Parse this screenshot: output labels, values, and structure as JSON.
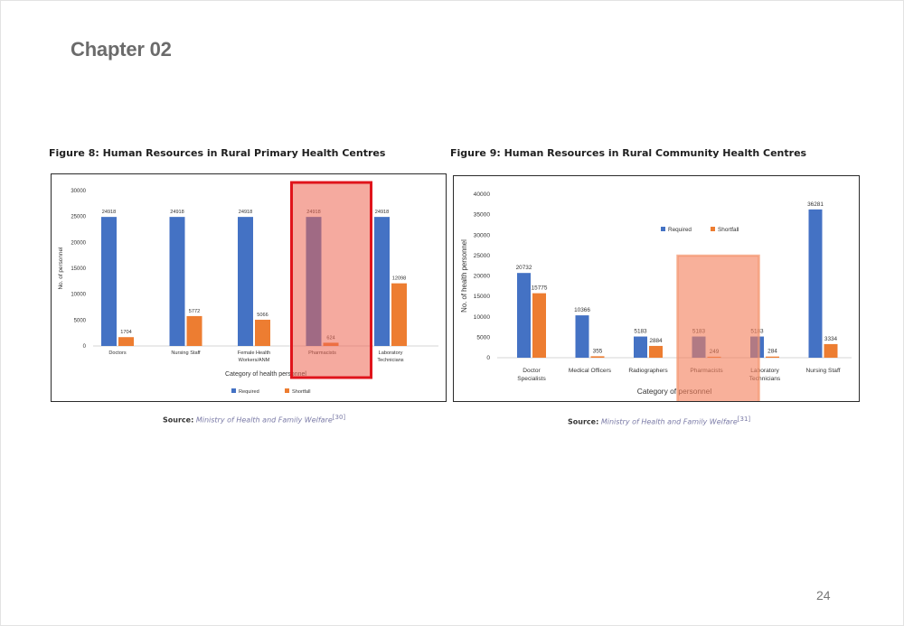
{
  "chapter": "Chapter 02",
  "page_number": "24",
  "colors": {
    "required": "#4472c4",
    "shortfall": "#ed7d31"
  },
  "figures": [
    {
      "title": "Figure 8: Human Resources in Rural Primary Health Centres",
      "source_label": "Source:",
      "source_text": "Ministry of Health and Family Welfare",
      "source_ref": "[30]"
    },
    {
      "title": "Figure 9: Human Resources in Rural Community Health Centres",
      "source_label": "Source:",
      "source_text": "Ministry of Health and Family Welfare",
      "source_ref": "[31]"
    }
  ],
  "chart_data": [
    {
      "type": "bar",
      "categories": [
        [
          "Doctors"
        ],
        [
          "Nursing Staff"
        ],
        [
          "Female Health",
          "Workers/ANM"
        ],
        [
          "Pharmacists"
        ],
        [
          "Laboratory",
          "Technicians"
        ]
      ],
      "series": [
        {
          "name": "Required",
          "values": [
            24918,
            24918,
            24918,
            24918,
            24918
          ]
        },
        {
          "name": "Shortfall",
          "values": [
            1704,
            5772,
            5066,
            624,
            12098
          ]
        }
      ],
      "data_labels": [
        [
          "24918",
          "24918",
          "24918",
          "24918",
          "24918"
        ],
        [
          "1704",
          "5772",
          "5066",
          "624",
          "12098"
        ]
      ],
      "xlabel": "Category of health personnel",
      "ylabel": "No. of personnel",
      "ylim": [
        0,
        30000
      ],
      "yticks": [
        0,
        5000,
        10000,
        15000,
        20000,
        25000,
        30000
      ],
      "legend_position": "bottom",
      "highlight": {
        "category_index": 3,
        "style": "red-outline"
      }
    },
    {
      "type": "bar",
      "categories": [
        [
          "Doctor",
          "Specialists"
        ],
        [
          "Medical Officers"
        ],
        [
          "Radiographers"
        ],
        [
          "Pharmacists"
        ],
        [
          "Laboratory",
          "Technicians"
        ],
        [
          "Nursing Staff"
        ]
      ],
      "series": [
        {
          "name": "Required",
          "values": [
            20732,
            10366,
            5183,
            5183,
            5183,
            36281
          ]
        },
        {
          "name": "Shortfall",
          "values": [
            15775,
            355,
            2884,
            249,
            284,
            3334
          ]
        }
      ],
      "data_labels": [
        [
          "20732",
          "10366",
          "5183",
          "5183",
          "5183",
          "36281"
        ],
        [
          "15775",
          "355",
          "2884",
          "249",
          "284",
          "3334"
        ]
      ],
      "xlabel": "Category of personnel",
      "ylabel": "No. of health personnel",
      "ylim": [
        0,
        40000
      ],
      "yticks": [
        0,
        5000,
        10000,
        15000,
        20000,
        25000,
        30000,
        35000,
        40000
      ],
      "legend_position": "top-right",
      "highlight": {
        "category_index": 3,
        "style": "orange-fill"
      }
    }
  ]
}
